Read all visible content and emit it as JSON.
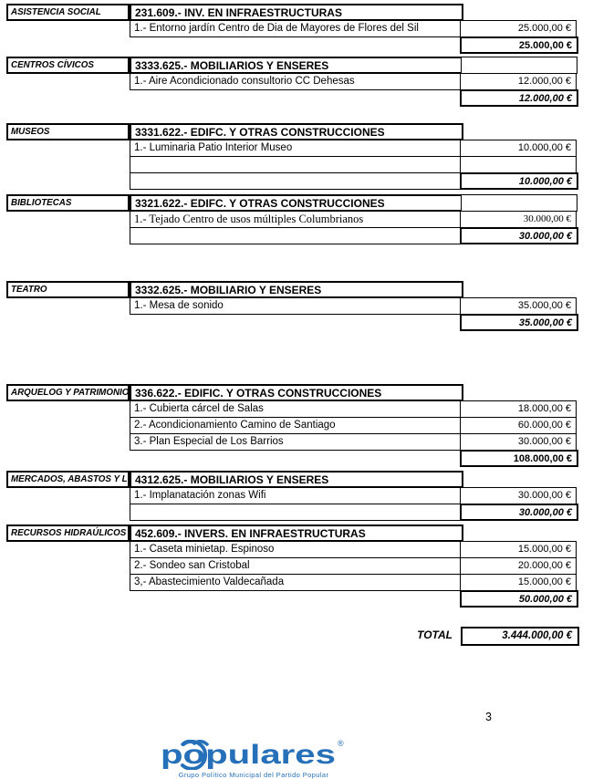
{
  "document": {
    "page_number": "3",
    "grand_total": {
      "label": "TOTAL",
      "amount": "3.444.000,00 €"
    },
    "sections": [
      {
        "category": "ASISTENCIA SOCIAL",
        "code": "231.609.- INV. EN INFRAESTRUCTURAS",
        "header_amount_cell": false,
        "items": [
          {
            "text": "1.- Entorno jardín Centro de Dia de Mayores de Flores del Sil",
            "amount": "25.000,00 €",
            "serif": false
          }
        ],
        "empty_rows": 0,
        "total": {
          "amount": "25.000,00 €",
          "italic": false,
          "desc_cell": false
        }
      },
      {
        "category": "CENTROS CÍVICOS",
        "code": "3333.625.- MOBILIARIOS Y ENSERES",
        "header_amount_cell": true,
        "items": [
          {
            "text": "1.- Aire Acondicionado consultorio CC Dehesas",
            "amount": "12.000,00 €",
            "serif": false
          }
        ],
        "empty_rows": 0,
        "total": {
          "amount": "12.000,00 €",
          "italic": true,
          "desc_cell": false
        }
      },
      {
        "category": "MUSEOS",
        "code": "3331.622.- EDIFC. Y OTRAS CONSTRUCCIONES",
        "header_amount_cell": false,
        "items": [
          {
            "text": "1.- Luminaria Patio Interior Museo",
            "amount": "10.000,00 €",
            "serif": false
          }
        ],
        "empty_rows": 1,
        "total": {
          "amount": "10.000,00 €",
          "italic": true,
          "desc_cell": true
        }
      },
      {
        "category": "BIBLIOTECAS",
        "code": "3321.622.- EDIFC. Y OTRAS CONSTRUCCIONES",
        "header_amount_cell": true,
        "items": [
          {
            "text": "1.- Tejado Centro de usos múltiples Columbrianos",
            "amount": "30.000,00 €",
            "serif": true
          }
        ],
        "empty_rows": 0,
        "total": {
          "amount": "30.000,00 €",
          "italic": true,
          "desc_cell": true
        }
      },
      {
        "category": "TEATRO",
        "code": "3332.625.- MOBILIARIO Y ENSERES",
        "header_amount_cell": false,
        "items": [
          {
            "text": "1.- Mesa de sonido",
            "amount": "35.000,00 €",
            "serif": false
          }
        ],
        "empty_rows": 0,
        "total": {
          "amount": "35.000,00 €",
          "italic": true,
          "desc_cell": false
        }
      },
      {
        "category": "ARQUELOG Y PATRIMONIO",
        "code": "336.622.- EDIFIC. Y OTRAS CONSTRUCCIONES",
        "header_amount_cell": false,
        "items": [
          {
            "text": "1.- Cubierta cárcel de Salas",
            "amount": "18.000,00 €",
            "serif": false
          },
          {
            "text": "2.- Acondicionamiento Camino de Santiago",
            "amount": "60.000,00 €",
            "serif": false
          },
          {
            "text": "3.- Plan Especial de Los Barrios",
            "amount": "30.000,00 €",
            "serif": false
          }
        ],
        "empty_rows": 0,
        "total": {
          "amount": "108.000,00 €",
          "italic": false,
          "desc_cell": false
        }
      },
      {
        "category": "MERCADOS, ABASTOS Y L",
        "code": "4312.625.- MOBILIARIOS Y ENSERES",
        "header_amount_cell": false,
        "items": [
          {
            "text": "1.- Implanatación zonas Wifi",
            "amount": "30.000,00 €",
            "serif": false
          }
        ],
        "empty_rows": 0,
        "total": {
          "amount": "30.000,00 €",
          "italic": true,
          "desc_cell": true
        }
      },
      {
        "category": "RECURSOS HIDRAÚLICOS",
        "code": "452.609.- INVERS. EN INFRAESTRUCTURAS",
        "header_amount_cell": false,
        "items": [
          {
            "text": "1.- Caseta minietap. Espinoso",
            "amount": "15.000,00 €",
            "serif": false
          },
          {
            "text": "2.- Sondeo san Cristobal",
            "amount": "20.000,00 €",
            "serif": false
          },
          {
            "text": "3,- Abastecimiento Valdecañada",
            "amount": "15.000,00 €",
            "serif": false
          }
        ],
        "empty_rows": 0,
        "total": {
          "amount": "50.000,00 €",
          "italic": true,
          "desc_cell": false
        }
      }
    ]
  },
  "logo": {
    "brand": "populares",
    "registered": "®",
    "tagline": "Grupo Político Municipal del Partido Popular",
    "color": "#2570b9"
  }
}
